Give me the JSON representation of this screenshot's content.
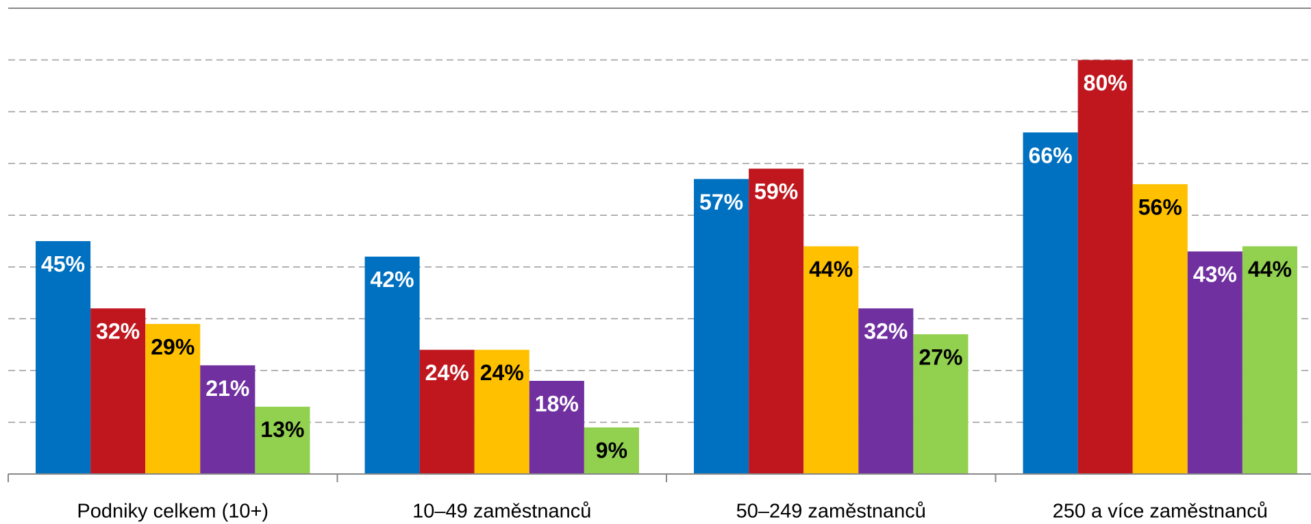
{
  "chart_data": {
    "type": "bar",
    "categories": [
      "Podniky celkem (10+)",
      "10–49 zaměstnanců",
      "50–249 zaměstnanců",
      "250 a více zaměstnanců"
    ],
    "series": [
      {
        "color": "#0070c0",
        "label_color": "#ffffff",
        "values": [
          45,
          42,
          57,
          66
        ],
        "value_labels": [
          "45%",
          "42%",
          "57%",
          "66%"
        ]
      },
      {
        "color": "#c0171f",
        "label_color": "#ffffff",
        "values": [
          32,
          24,
          59,
          80
        ],
        "value_labels": [
          "32%",
          "24%",
          "59%",
          "80%"
        ]
      },
      {
        "color": "#ffc000",
        "label_color": "#000000",
        "values": [
          29,
          24,
          44,
          56
        ],
        "value_labels": [
          "29%",
          "24%",
          "44%",
          "56%"
        ]
      },
      {
        "color": "#7030a0",
        "label_color": "#ffffff",
        "values": [
          21,
          18,
          32,
          43
        ],
        "value_labels": [
          "21%",
          "18%",
          "32%",
          "43%"
        ]
      },
      {
        "color": "#92d050",
        "label_color": "#000000",
        "values": [
          13,
          9,
          27,
          44
        ],
        "value_labels": [
          "13%",
          "9%",
          "27%",
          "44%"
        ]
      }
    ],
    "ylim": [
      0,
      90
    ],
    "yticks": [
      10,
      20,
      30,
      40,
      50,
      60,
      70,
      80
    ],
    "grid": true
  }
}
